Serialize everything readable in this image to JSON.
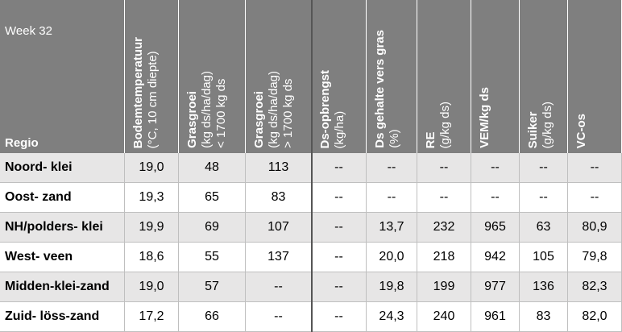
{
  "header": {
    "week": "Week 32",
    "region": "Regio"
  },
  "columns": [
    {
      "lines": [
        "Bodemtemperatuur",
        "(°C, 10 cm diepte)"
      ]
    },
    {
      "lines": [
        "Grasgroei",
        "(kg ds/ha/dag)",
        "< 1700 kg ds"
      ]
    },
    {
      "lines": [
        "Grasgroei",
        "(kg ds/ha/dag)",
        "> 1700 kg ds"
      ]
    },
    {
      "lines": [
        "Ds-opbrengst",
        "(kg/ha)"
      ]
    },
    {
      "lines": [
        "Ds gehalte vers gras",
        "(%)"
      ]
    },
    {
      "lines": [
        "RE",
        "(g/kg ds)"
      ]
    },
    {
      "lines": [
        "VEM/kg ds"
      ]
    },
    {
      "lines": [
        "Suiker",
        "(g/kg ds)"
      ]
    },
    {
      "lines": [
        "VC-os"
      ]
    }
  ],
  "rows": [
    {
      "region": "Noord- klei",
      "values": [
        "19,0",
        "48",
        "113",
        "--",
        "--",
        "--",
        "--",
        "--",
        "--"
      ]
    },
    {
      "region": "Oost- zand",
      "values": [
        "19,3",
        "65",
        "83",
        "--",
        "--",
        "--",
        "--",
        "--",
        "--"
      ]
    },
    {
      "region": "NH/polders- klei",
      "values": [
        "19,9",
        "69",
        "107",
        "--",
        "13,7",
        "232",
        "965",
        "63",
        "80,9"
      ]
    },
    {
      "region": "West- veen",
      "values": [
        "18,6",
        "55",
        "137",
        "--",
        "20,0",
        "218",
        "942",
        "105",
        "79,8"
      ]
    },
    {
      "region": "Midden-klei-zand",
      "values": [
        "19,0",
        "57",
        "--",
        "--",
        "19,8",
        "199",
        "977",
        "136",
        "82,3"
      ]
    },
    {
      "region": "Zuid- löss-zand",
      "values": [
        "17,2",
        "66",
        "--",
        "--",
        "24,3",
        "240",
        "961",
        "83",
        "82,0"
      ]
    }
  ]
}
